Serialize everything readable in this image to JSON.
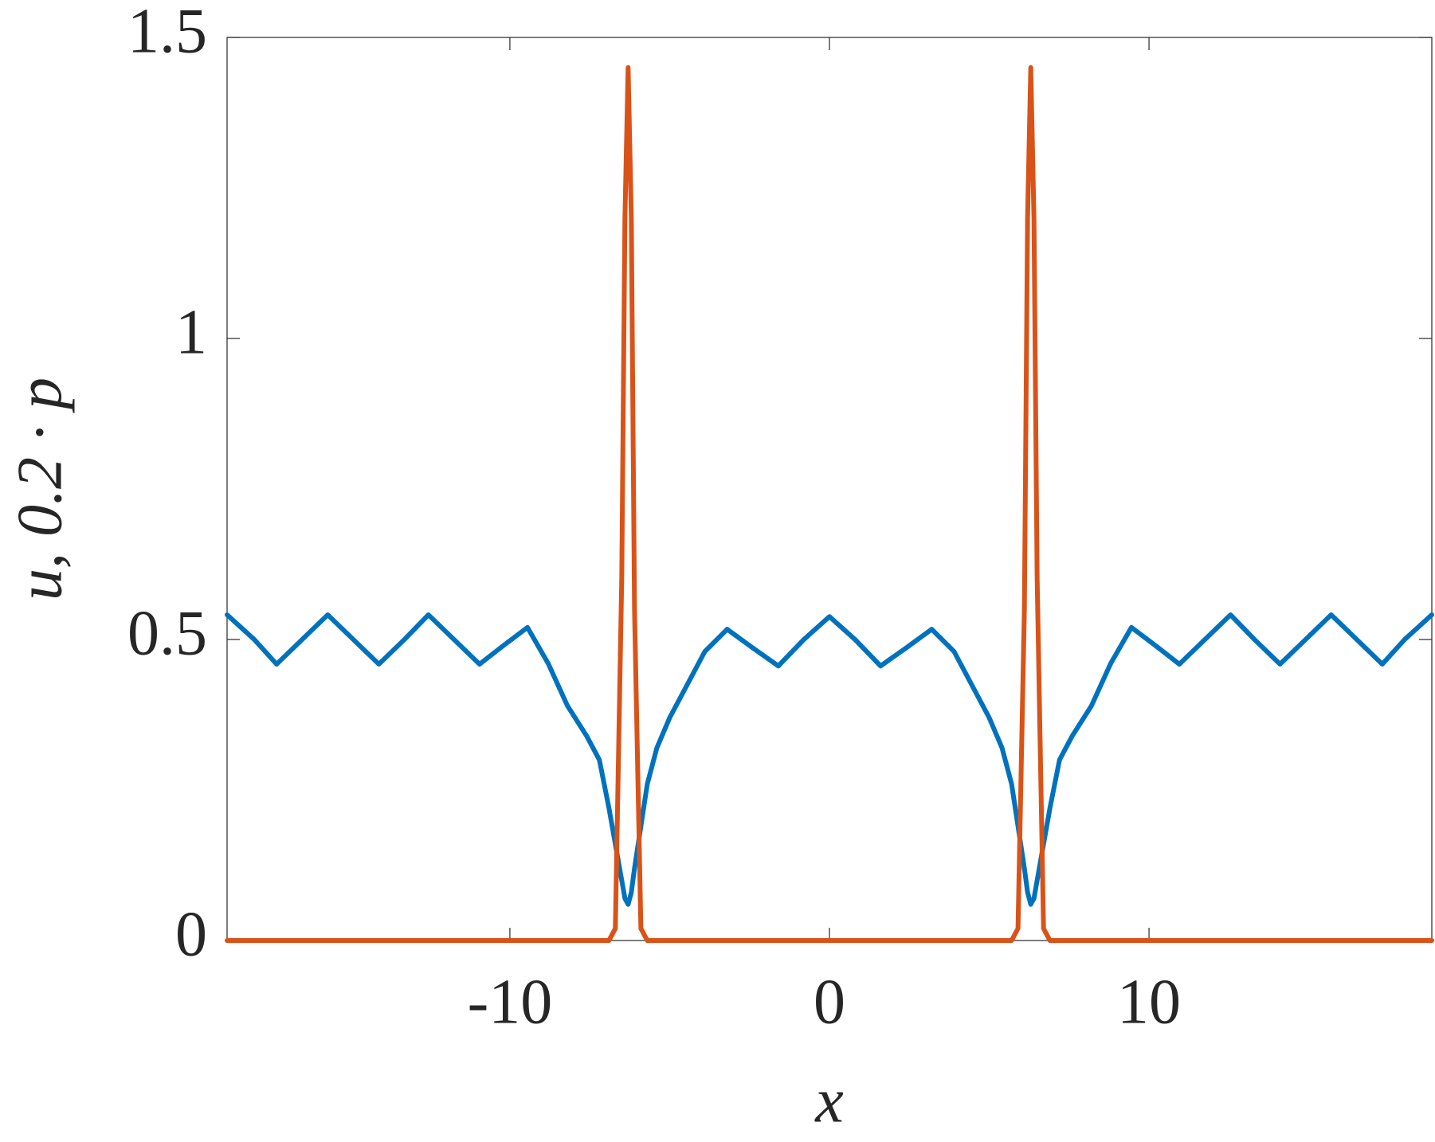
{
  "chart_data": {
    "type": "line",
    "xlabel": "x",
    "ylabel": "u, 0.2 · p",
    "x": [
      -18.85,
      -18.0,
      -17.3,
      -16.5,
      -15.7,
      -14.9,
      -14.1,
      -13.3,
      -12.55,
      -11.75,
      -10.95,
      -10.2,
      -9.45,
      -8.8,
      -8.2,
      -7.6,
      -7.2,
      -6.9,
      -6.7,
      -6.5,
      -6.4,
      -6.3,
      -6.2,
      -6.1,
      -5.9,
      -5.7,
      -5.4,
      -5.0,
      -4.5,
      -3.9,
      -3.2,
      -2.4,
      -1.6,
      -0.8,
      0,
      0.8,
      1.6,
      2.4,
      3.2,
      3.9,
      4.5,
      5.0,
      5.4,
      5.7,
      5.9,
      6.1,
      6.2,
      6.3,
      6.4,
      6.5,
      6.7,
      6.9,
      7.2,
      7.6,
      8.2,
      8.8,
      9.45,
      10.2,
      10.95,
      11.75,
      12.55,
      13.3,
      14.1,
      14.9,
      15.7,
      16.5,
      17.3,
      18.0,
      18.85
    ],
    "series": [
      {
        "color": "#0072bd",
        "values": [
          0.541,
          0.5,
          0.459,
          0.5,
          0.541,
          0.5,
          0.459,
          0.5,
          0.541,
          0.5,
          0.459,
          0.49,
          0.52,
          0.46,
          0.39,
          0.34,
          0.3,
          0.22,
          0.16,
          0.1,
          0.07,
          0.06,
          0.08,
          0.12,
          0.19,
          0.26,
          0.32,
          0.37,
          0.42,
          0.48,
          0.517,
          0.486,
          0.456,
          0.5,
          0.538,
          0.5,
          0.456,
          0.486,
          0.517,
          0.48,
          0.42,
          0.37,
          0.32,
          0.26,
          0.19,
          0.12,
          0.08,
          0.06,
          0.07,
          0.1,
          0.16,
          0.22,
          0.3,
          0.34,
          0.39,
          0.46,
          0.52,
          0.49,
          0.459,
          0.5,
          0.541,
          0.5,
          0.459,
          0.5,
          0.541,
          0.5,
          0.459,
          0.5,
          0.541
        ]
      },
      {
        "color": "#d95319",
        "values": [
          0,
          0,
          0,
          0,
          0,
          0,
          0,
          0,
          0,
          0,
          0,
          0,
          0,
          0,
          0,
          0,
          0,
          0,
          0.02,
          0.6,
          1.2,
          1.45,
          1.2,
          0.55,
          0.02,
          0,
          0,
          0,
          0,
          0,
          0,
          0,
          0,
          0,
          0,
          0,
          0,
          0,
          0,
          0,
          0,
          0,
          0,
          0,
          0.02,
          0.55,
          1.2,
          1.45,
          1.2,
          0.6,
          0.02,
          0,
          0,
          0,
          0,
          0,
          0,
          0,
          0,
          0,
          0,
          0,
          0,
          0,
          0,
          0,
          0,
          0,
          0
        ]
      }
    ],
    "xlim": [
      -18.85,
      18.85
    ],
    "ylim": [
      0,
      1.5
    ],
    "xticks": [
      -10,
      0,
      10
    ],
    "yticks": [
      0,
      0.5,
      1,
      1.5
    ]
  }
}
